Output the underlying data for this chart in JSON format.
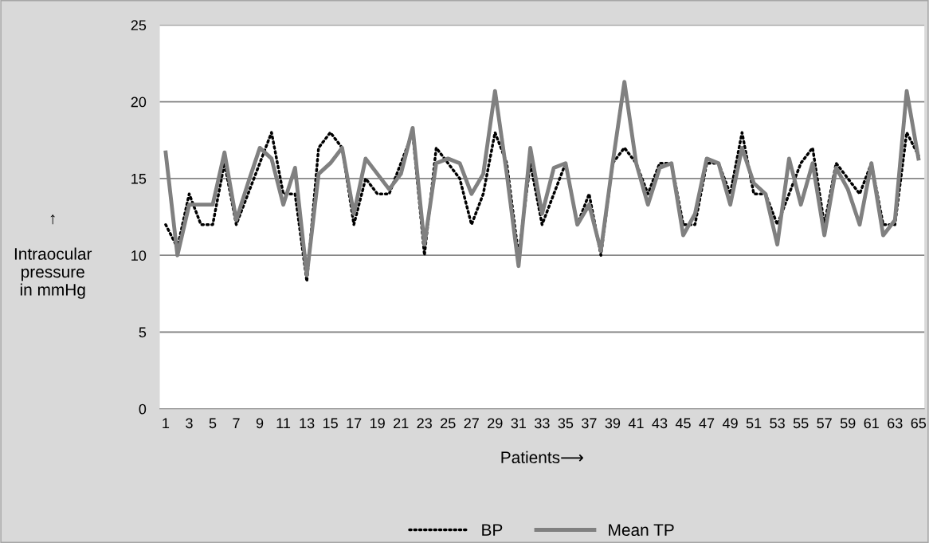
{
  "chart_data": {
    "type": "line",
    "xlabel": "Patients⟶",
    "ylabel": "↑\n\nIntraocular\npressure\nin mmHg",
    "categories": [
      "1",
      null,
      "3",
      null,
      "5",
      null,
      "7",
      null,
      "9",
      null,
      "11",
      null,
      "13",
      null,
      "15",
      null,
      "17",
      null,
      "19",
      null,
      "21",
      null,
      "23",
      null,
      "25",
      null,
      "27",
      null,
      "29",
      null,
      "31",
      null,
      "33",
      null,
      "35",
      null,
      "37",
      null,
      "39",
      null,
      "41",
      null,
      "43",
      null,
      "45",
      null,
      "47",
      null,
      "49",
      null,
      "51",
      null,
      "53",
      null,
      "55",
      null,
      "57",
      null,
      "59",
      null,
      "61",
      null,
      "63",
      null,
      "65"
    ],
    "series": [
      {
        "name": "BP",
        "color": "#000000",
        "line_style": "dotted",
        "values": [
          12,
          10.5,
          14,
          12,
          12,
          16,
          12,
          14,
          16,
          18,
          14,
          14,
          8.3,
          17,
          18,
          17,
          12,
          15,
          14,
          14,
          16,
          18,
          10,
          17,
          16,
          15,
          12,
          14,
          18,
          16,
          10,
          16,
          12,
          14,
          16,
          12,
          14,
          10,
          16,
          17,
          16,
          14,
          16,
          16,
          12,
          12,
          16,
          16,
          14,
          18,
          14,
          14,
          12,
          14,
          16,
          17,
          12,
          16,
          15,
          14,
          16,
          12,
          12,
          18,
          16.5
        ]
      },
      {
        "name": "Mean TP",
        "color": "#808080",
        "line_style": "solid",
        "values": [
          16.7,
          10,
          13.3,
          13.3,
          13.3,
          16.7,
          12.3,
          14.7,
          17,
          16.3,
          13.3,
          15.7,
          8.7,
          15.3,
          16,
          17,
          12.7,
          16.3,
          15.3,
          14.3,
          15.3,
          18.3,
          10.7,
          16,
          16.3,
          16,
          14,
          15.3,
          20.7,
          15.3,
          9.3,
          17,
          12.7,
          15.7,
          16,
          12,
          13.3,
          10.3,
          16,
          21.3,
          16,
          13.3,
          15.7,
          16,
          11.3,
          12.7,
          16.3,
          16,
          13.3,
          17,
          14.7,
          14,
          10.7,
          16.3,
          13.3,
          16,
          11.3,
          15.7,
          14.3,
          12,
          16,
          11.3,
          12.3,
          20.7,
          16.3
        ]
      }
    ],
    "ylim": [
      0,
      25
    ],
    "yticks": [
      0,
      5,
      10,
      15,
      20,
      25
    ],
    "grid": "y",
    "legend": "bottom"
  }
}
